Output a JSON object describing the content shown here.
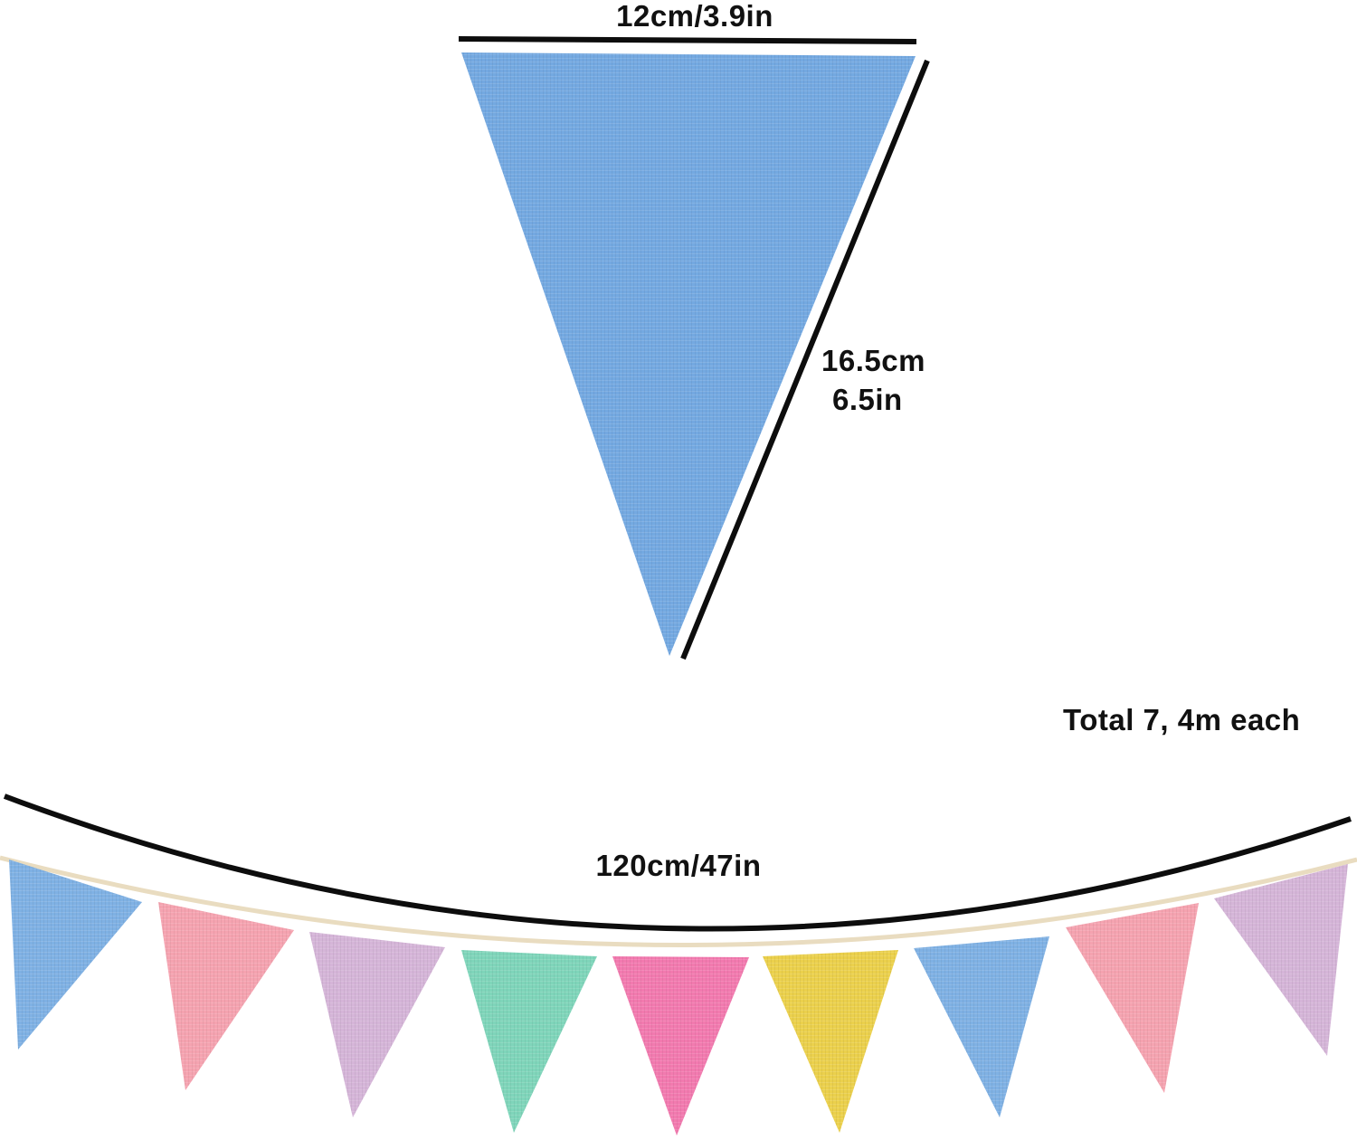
{
  "dimensions": {
    "width_label": "12cm/3.9in",
    "height_label_cm": "16.5cm",
    "height_label_in": "6.5in",
    "total_label": "Total 7, 4m each",
    "length_label": "120cm/47in"
  },
  "colors": {
    "large_flag": "#74a9e1",
    "line": "#0d0d0d",
    "string": "#e9dcc0"
  },
  "flags": [
    {
      "color": "#7fb1e4"
    },
    {
      "color": "#f5a3b0"
    },
    {
      "color": "#d5b5d8"
    },
    {
      "color": "#7fd5ba"
    },
    {
      "color": "#f27aaf"
    },
    {
      "color": "#ebd04c"
    },
    {
      "color": "#7fb1e4"
    },
    {
      "color": "#f5a3b0"
    },
    {
      "color": "#d5b5d8"
    }
  ]
}
